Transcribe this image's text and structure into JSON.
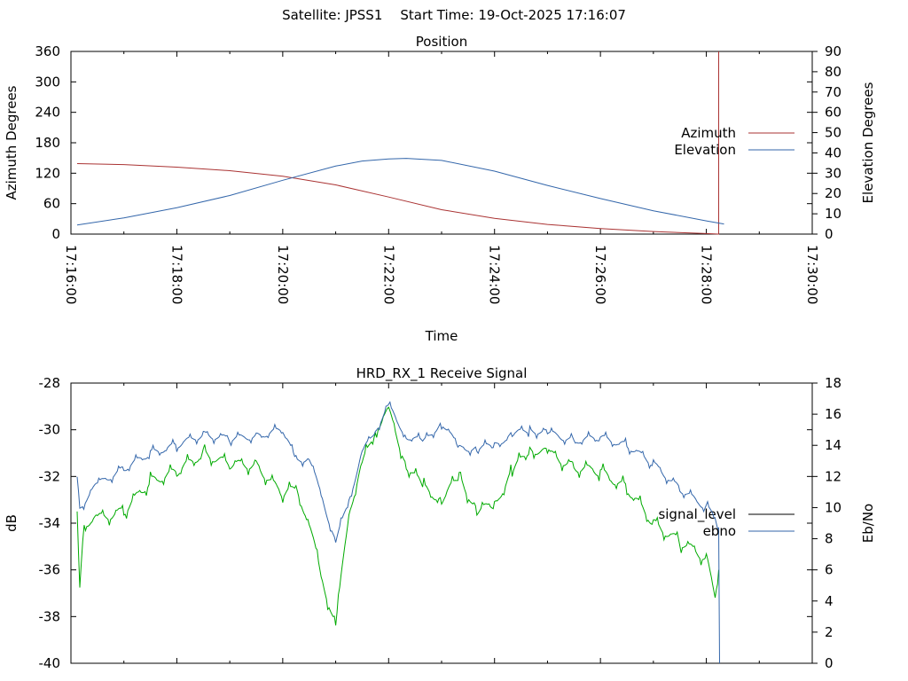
{
  "header": {
    "satellite": "Satellite: JPSS1",
    "start_time": "Start Time: 19-Oct-2025 17:16:07"
  },
  "chart_data": [
    {
      "type": "line",
      "title": "Position",
      "xlabel": "Time",
      "ylabel_left": "Azimuth Degrees",
      "ylabel_right": "Elevation Degrees",
      "x_range": [
        "17:16:00",
        "17:30:00"
      ],
      "x_ticks": [
        "17:16:00",
        "17:18:00",
        "17:20:00",
        "17:22:00",
        "17:24:00",
        "17:26:00",
        "17:28:00",
        "17:30:00"
      ],
      "ylim_left": [
        0,
        360
      ],
      "y_ticks_left": [
        "0",
        "60",
        "120",
        "180",
        "240",
        "300",
        "360"
      ],
      "ylim_right": [
        0,
        90
      ],
      "y_ticks_right": [
        "0",
        "10",
        "20",
        "30",
        "40",
        "50",
        "60",
        "70",
        "80",
        "90"
      ],
      "legend_position": "right",
      "series": [
        {
          "name": "Azimuth",
          "axis": "left",
          "color": "#aa3333",
          "x": [
            "17:16:07",
            "17:17:00",
            "17:18:00",
            "17:19:00",
            "17:20:00",
            "17:21:00",
            "17:22:00",
            "17:23:00",
            "17:24:00",
            "17:25:00",
            "17:26:00",
            "17:27:00",
            "17:28:00",
            "17:28:14",
            "17:28:14"
          ],
          "values": [
            139,
            137,
            132,
            125,
            114,
            97,
            73,
            48,
            31,
            19,
            11,
            5,
            1,
            0,
            360
          ]
        },
        {
          "name": "Elevation",
          "axis": "right",
          "color": "#3366aa",
          "x": [
            "17:16:07",
            "17:17:00",
            "17:18:00",
            "17:19:00",
            "17:20:00",
            "17:21:00",
            "17:21:30",
            "17:22:00",
            "17:22:20",
            "17:23:00",
            "17:24:00",
            "17:25:00",
            "17:26:00",
            "17:27:00",
            "17:28:00",
            "17:28:20"
          ],
          "values": [
            4.5,
            8,
            13,
            19,
            26.5,
            33.5,
            36,
            37,
            37.3,
            36.3,
            31,
            24,
            17.5,
            11.5,
            6.5,
            5
          ]
        }
      ]
    },
    {
      "type": "line",
      "title": "HRD_RX_1 Receive Signal",
      "ylabel_left": "dB",
      "ylabel_right": "Eb/No",
      "x_range": [
        "17:16:00",
        "17:30:00"
      ],
      "ylim_left": [
        -40,
        -28
      ],
      "y_ticks_left": [
        "-28",
        "-30",
        "-32",
        "-34",
        "-36",
        "-38",
        "-40"
      ],
      "ylim_right": [
        0,
        18
      ],
      "y_ticks_right": [
        "0",
        "2",
        "4",
        "6",
        "8",
        "10",
        "12",
        "14",
        "16",
        "18"
      ],
      "legend_position": "right",
      "series": [
        {
          "name": "signal_level",
          "axis": "left",
          "color": "#00aa00",
          "legend_color": "#000000",
          "x": [
            "17:16:07",
            "17:16:10",
            "17:16:15",
            "17:16:30",
            "17:17:00",
            "17:17:30",
            "17:18:00",
            "17:18:30",
            "17:19:00",
            "17:19:30",
            "17:20:00",
            "17:20:15",
            "17:20:30",
            "17:20:45",
            "17:21:00",
            "17:21:15",
            "17:21:30",
            "17:21:45",
            "17:22:00",
            "17:22:20",
            "17:22:40",
            "17:23:00",
            "17:23:20",
            "17:23:40",
            "17:24:00",
            "17:24:20",
            "17:24:40",
            "17:25:00",
            "17:25:30",
            "17:26:00",
            "17:26:30",
            "17:27:00",
            "17:27:30",
            "17:28:00",
            "17:28:10",
            "17:28:14"
          ],
          "values": [
            -33.5,
            -36.8,
            -34,
            -33.8,
            -33.5,
            -32.2,
            -31.8,
            -31,
            -31.5,
            -31.5,
            -32.8,
            -32.5,
            -34,
            -36.5,
            -38.4,
            -33.5,
            -31.5,
            -30,
            -29.2,
            -31.5,
            -32.5,
            -33,
            -32,
            -33.5,
            -33.2,
            -31.8,
            -30.8,
            -31,
            -31.6,
            -31.8,
            -32.5,
            -34,
            -34.8,
            -35.5,
            -37,
            -36
          ]
        },
        {
          "name": "ebno",
          "axis": "right",
          "color": "#3366aa",
          "x": [
            "17:16:07",
            "17:16:10",
            "17:16:30",
            "17:17:00",
            "17:17:30",
            "17:18:00",
            "17:18:30",
            "17:19:00",
            "17:19:30",
            "17:20:00",
            "17:20:15",
            "17:20:30",
            "17:20:45",
            "17:21:00",
            "17:21:15",
            "17:21:30",
            "17:21:45",
            "17:22:00",
            "17:22:20",
            "17:22:40",
            "17:23:00",
            "17:23:20",
            "17:23:40",
            "17:24:00",
            "17:24:20",
            "17:24:40",
            "17:25:00",
            "17:25:30",
            "17:26:00",
            "17:26:30",
            "17:27:00",
            "17:27:30",
            "17:28:00",
            "17:28:10",
            "17:28:14",
            "17:28:15"
          ],
          "values": [
            12,
            10,
            11.5,
            12.5,
            13.5,
            14,
            14.7,
            14.4,
            14.6,
            15,
            13,
            13.2,
            10.5,
            7.8,
            10.5,
            13.5,
            15,
            16.5,
            14.6,
            14.2,
            15.5,
            13.8,
            13.8,
            14,
            14.7,
            15,
            14.8,
            14.3,
            14.5,
            14,
            12.8,
            11.2,
            10,
            9.5,
            8.5,
            0
          ]
        }
      ]
    }
  ]
}
